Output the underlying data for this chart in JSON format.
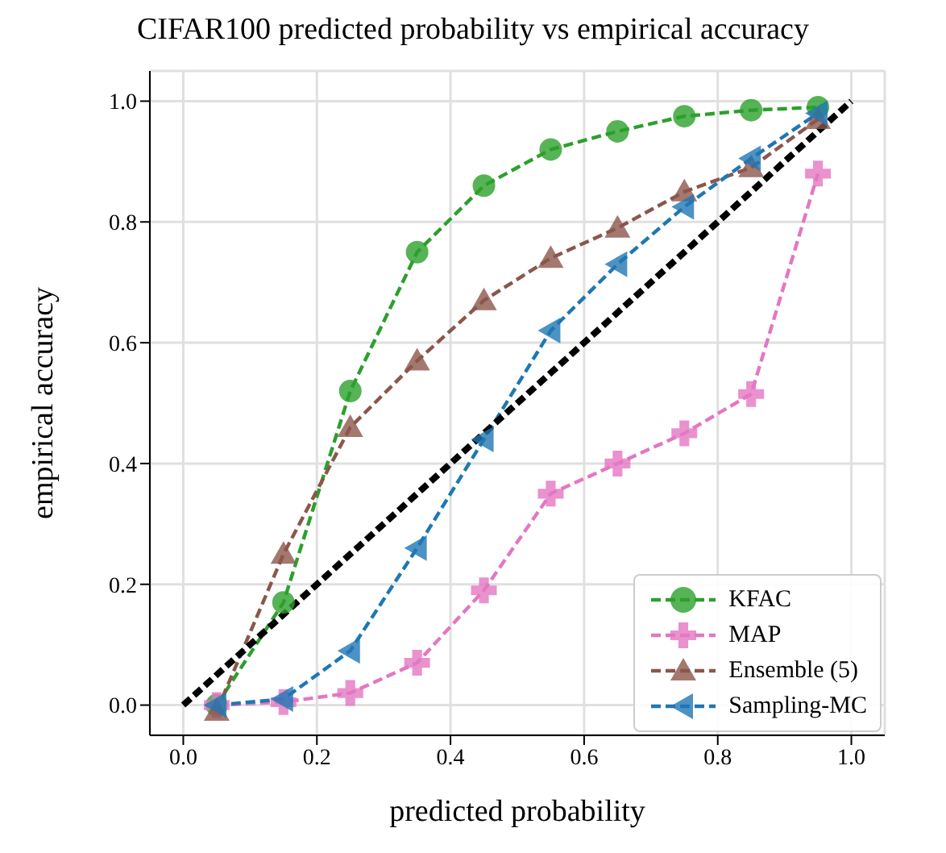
{
  "chart_data": {
    "type": "line",
    "title": "CIFAR100 predicted probability vs empirical accuracy",
    "xlabel": "predicted probability",
    "ylabel": "empirical accuracy",
    "x": [
      0.05,
      0.15,
      0.25,
      0.35,
      0.45,
      0.55,
      0.65,
      0.75,
      0.85,
      0.95
    ],
    "series": [
      {
        "name": "KFAC",
        "color": "#2ca02c",
        "marker": "circle",
        "line_style": "dashed",
        "values": [
          0.0,
          0.17,
          0.52,
          0.75,
          0.86,
          0.92,
          0.95,
          0.975,
          0.985,
          0.99
        ]
      },
      {
        "name": "MAP",
        "color": "#e377c2",
        "marker": "cross",
        "line_style": "dashed",
        "values": [
          0.0,
          0.005,
          0.02,
          0.07,
          0.19,
          0.35,
          0.4,
          0.45,
          0.515,
          0.88
        ]
      },
      {
        "name": "Ensemble (5)",
        "color": "#8c564b",
        "marker": "triangle",
        "line_style": "dashed",
        "values": [
          -0.01,
          0.25,
          0.46,
          0.57,
          0.67,
          0.74,
          0.79,
          0.85,
          0.89,
          0.97
        ]
      },
      {
        "name": "Sampling-MC",
        "color": "#1f77b4",
        "marker": "triangle-left",
        "line_style": "dashed",
        "values": [
          0.0,
          0.01,
          0.09,
          0.26,
          0.44,
          0.62,
          0.73,
          0.825,
          0.905,
          0.98
        ]
      },
      {
        "color": "#000000",
        "line_style": "dashed",
        "marker": "none",
        "x": [
          0,
          1
        ],
        "values": [
          0,
          1
        ]
      }
    ],
    "xlim": [
      -0.05,
      1.05
    ],
    "ylim": [
      -0.05,
      1.05
    ],
    "xticks": [
      {
        "value": 0,
        "label": "0.0"
      },
      0.2,
      0.4,
      0.6,
      0.8,
      {
        "value": 1,
        "label": "1.0"
      }
    ],
    "yticks": [
      {
        "value": 0,
        "label": "0.0"
      },
      0.2,
      0.4,
      0.6,
      0.8,
      {
        "value": 1,
        "label": "1.0"
      }
    ],
    "grid": true,
    "legend": "bottom right"
  }
}
